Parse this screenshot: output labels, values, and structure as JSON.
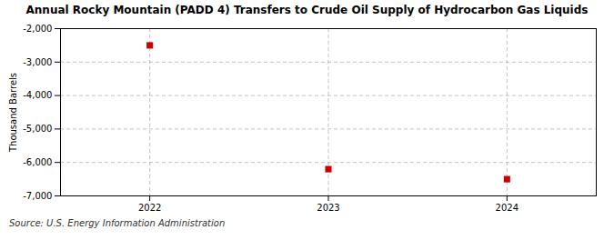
{
  "chart_data": {
    "type": "scatter",
    "title": "Annual Rocky Mountain (PADD 4) Transfers to Crude Oil Supply of Hydrocarbon Gas Liquids",
    "ylabel": "Thousand Barrels",
    "source": "Source: U.S. Energy Information Administration",
    "x": [
      2022,
      2023,
      2024
    ],
    "values": [
      -2500,
      -6200,
      -6500
    ],
    "color": "#cc0000",
    "marker": "square",
    "xlim": [
      2021.5,
      2024.5
    ],
    "xticks": [
      2022,
      2023,
      2024
    ],
    "ylim": [
      -7000,
      -2000
    ],
    "yticks": [
      {
        "value": -2000,
        "label": "-2,000"
      },
      {
        "value": -3000,
        "label": "-3,000"
      },
      {
        "value": -4000,
        "label": "-4,000"
      },
      {
        "value": -5000,
        "label": "-5,000"
      },
      {
        "value": -6000,
        "label": "-6,000"
      },
      {
        "value": -7000,
        "label": "-7,000"
      }
    ],
    "grid": true
  }
}
